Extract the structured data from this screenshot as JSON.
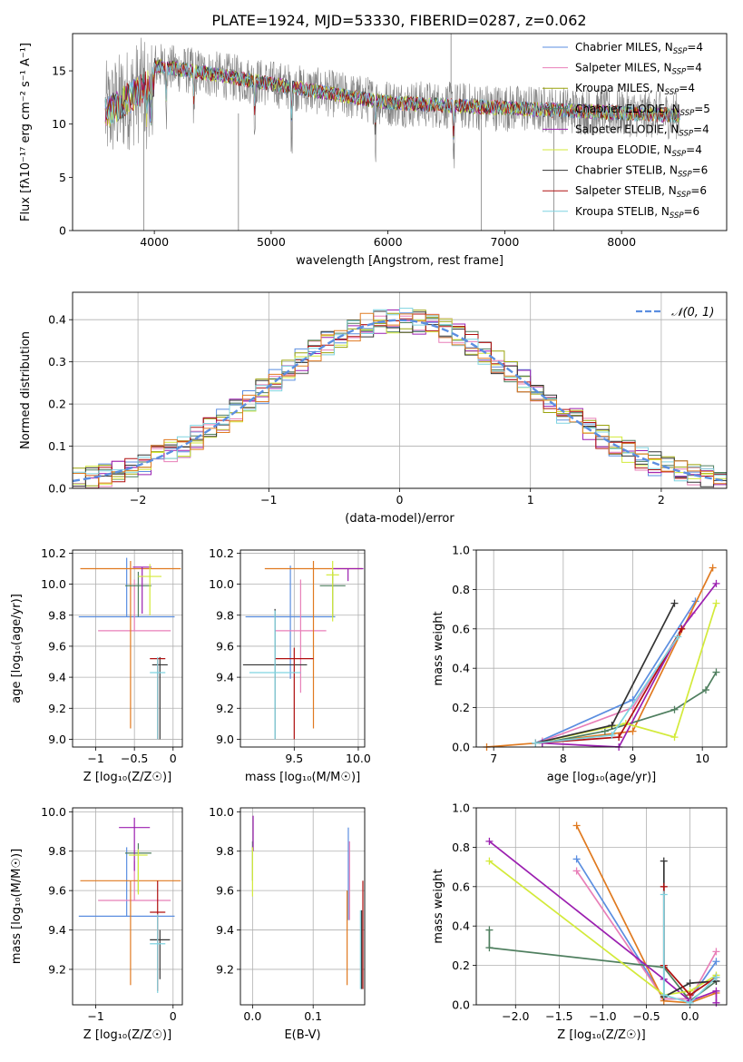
{
  "figure": {
    "title": "PLATE=1924, MJD=53330, FIBERID=0287, z=0.062"
  },
  "chart_data": [
    {
      "id": "spectrum",
      "type": "line",
      "title": "PLATE=1924, MJD=53330, FIBERID=0287, z=0.062",
      "xlabel": "wavelength [Angstrom, rest frame]",
      "ylabel": "Flux [fλ10⁻¹⁷ erg cm⁻² s⁻¹ A⁻¹]",
      "xlim": [
        3300,
        8900
      ],
      "ylim": [
        0,
        18.5
      ],
      "xticks": [
        4000,
        5000,
        6000,
        7000,
        8000
      ],
      "yticks": [
        0,
        5,
        10,
        15
      ],
      "grid": false,
      "legend_position": "top-right",
      "data_color": "#808080",
      "data_range": [
        3580,
        8500
      ],
      "models": [
        {
          "name": "Chabrier MILES, N",
          "sub": "SSP",
          "n": "=4",
          "color": "#5b8ee0"
        },
        {
          "name": "Salpeter MILES, N",
          "sub": "SSP",
          "n": "=4",
          "color": "#e87fb8"
        },
        {
          "name": "Kroupa MILES, N",
          "sub": "SSP",
          "n": "=4",
          "color": "#9aa30c"
        },
        {
          "name": "Chabrier ELODIE, N",
          "sub": "SSP",
          "n": "=5",
          "color": "#4f7f5f"
        },
        {
          "name": "Salpeter ELODIE, N",
          "sub": "SSP",
          "n": "=4",
          "color": "#9b1fb0"
        },
        {
          "name": "Kroupa ELODIE, N",
          "sub": "SSP",
          "n": "=4",
          "color": "#d3ea3a"
        },
        {
          "name": "Chabrier STELIB, N",
          "sub": "SSP",
          "n": "=6",
          "color": "#333333"
        },
        {
          "name": "Salpeter STELIB, N",
          "sub": "SSP",
          "n": "=6",
          "color": "#b01010"
        },
        {
          "name": "Kroupa STELIB, N",
          "sub": "SSP",
          "n": "=6",
          "color": "#7fd3e0"
        }
      ]
    },
    {
      "id": "residuals",
      "type": "line",
      "xlabel": "(data-model)/error",
      "ylabel": "Normed distribution",
      "xlim": [
        -2.5,
        2.5
      ],
      "ylim": [
        0,
        0.465
      ],
      "xticks": [
        -2,
        -1,
        0,
        1,
        2
      ],
      "yticks": [
        0.0,
        0.1,
        0.2,
        0.3,
        0.4
      ],
      "grid": true,
      "legend_position": "top-right",
      "legend_label": "𝒩(0, 1)",
      "bin_width": 0.1,
      "gaussian_color": "#5b8ee0"
    },
    {
      "id": "age-vs-z",
      "type": "scatter",
      "xlabel": "Z [log₁₀(Z/Z☉)]",
      "ylabel": "age [log₁₀(age/yr)]",
      "xlim": [
        -1.3,
        0.12
      ],
      "ylim": [
        8.95,
        10.22
      ],
      "xticks": [
        -1,
        -0.5,
        0
      ],
      "xticklabels": [
        "−1",
        "−0.5",
        "0"
      ],
      "yticks": [
        9.0,
        9.2,
        9.4,
        9.6,
        9.8,
        10.0,
        10.2
      ],
      "grid": true,
      "points": [
        {
          "color": "#5b8ee0",
          "x": -0.6,
          "xerr": 0.62,
          "y": 9.79,
          "yerr": [
            0.0,
            0.38
          ]
        },
        {
          "color": "#e87fb8",
          "x": -0.5,
          "xerr": 0.47,
          "y": 9.7,
          "yerr": [
            0.0,
            0.33
          ]
        },
        {
          "color": "#e07a20",
          "x": -0.55,
          "xerr": 0.65,
          "y": 10.1,
          "yerr": [
            1.03,
            0.05
          ]
        },
        {
          "color": "#4f7f5f",
          "x": -0.45,
          "xerr": 0.17,
          "y": 9.99,
          "yerr": [
            0.2,
            0.09
          ]
        },
        {
          "color": "#9b1fb0",
          "x": -0.4,
          "xerr": 0.12,
          "y": 10.11,
          "yerr": [
            0.3,
            0.0
          ]
        },
        {
          "color": "#d3ea3a",
          "x": -0.3,
          "xerr": 0.15,
          "y": 10.05,
          "yerr": [
            0.25,
            0.08
          ]
        },
        {
          "color": "#333333",
          "x": -0.17,
          "xerr": 0.1,
          "y": 9.48,
          "yerr": [
            0.48,
            0.05
          ]
        },
        {
          "color": "#b01010",
          "x": -0.2,
          "xerr": 0.1,
          "y": 9.52,
          "yerr": [
            0.52,
            0.0
          ]
        },
        {
          "color": "#7fd3e0",
          "x": -0.2,
          "xerr": 0.1,
          "y": 9.43,
          "yerr": [
            0.43,
            0.1
          ]
        }
      ]
    },
    {
      "id": "age-vs-mass",
      "type": "scatter",
      "xlabel": "mass [log₁₀(M/M☉)]",
      "ylabel": "",
      "xlim": [
        9.08,
        10.05
      ],
      "ylim": [
        8.95,
        10.22
      ],
      "xticks": [
        9.5,
        10.0
      ],
      "xticklabels": [
        "9.5",
        "10.0"
      ],
      "yticks": [
        9.0,
        9.2,
        9.4,
        9.6,
        9.8,
        10.0,
        10.2
      ],
      "grid": true,
      "points": [
        {
          "color": "#5b8ee0",
          "x": 9.47,
          "xerr": 0.35,
          "y": 9.79,
          "yerr": [
            0.4,
            0.33
          ]
        },
        {
          "color": "#e87fb8",
          "x": 9.55,
          "xerr": 0.2,
          "y": 9.7,
          "yerr": [
            0.4,
            0.33
          ]
        },
        {
          "color": "#e07a20",
          "x": 9.65,
          "xerr": 0.38,
          "y": 10.1,
          "yerr": [
            1.03,
            0.05
          ]
        },
        {
          "color": "#4f7f5f",
          "x": 9.8,
          "xerr": 0.1,
          "y": 9.99,
          "yerr": [
            0.2,
            0.09
          ]
        },
        {
          "color": "#9b1fb0",
          "x": 9.92,
          "xerr": 0.12,
          "y": 10.1,
          "yerr": [
            0.08,
            0.0
          ]
        },
        {
          "color": "#d3ea3a",
          "x": 9.8,
          "xerr": 0.05,
          "y": 10.06,
          "yerr": [
            0.3,
            0.09
          ]
        },
        {
          "color": "#333333",
          "x": 9.35,
          "xerr": 0.25,
          "y": 9.48,
          "yerr": [
            0.48,
            0.36
          ]
        },
        {
          "color": "#b01010",
          "x": 9.5,
          "xerr": 0.15,
          "y": 9.52,
          "yerr": [
            0.52,
            0.07
          ]
        },
        {
          "color": "#7fd3e0",
          "x": 9.35,
          "xerr": 0.2,
          "y": 9.43,
          "yerr": [
            0.43,
            0.4
          ]
        }
      ]
    },
    {
      "id": "weight-vs-age",
      "type": "line",
      "xlabel": "age [log₁₀(age/yr)]",
      "ylabel": "mass weight",
      "xlim": [
        6.75,
        10.35
      ],
      "ylim": [
        0,
        1.0
      ],
      "xticks": [
        7,
        8,
        9,
        10
      ],
      "yticks": [
        0.0,
        0.2,
        0.4,
        0.6,
        0.8,
        1.0
      ],
      "grid": true,
      "series": [
        {
          "color": "#5b8ee0",
          "x": [
            7.6,
            9.0,
            9.9
          ],
          "y": [
            0.02,
            0.24,
            0.74
          ]
        },
        {
          "color": "#e87fb8",
          "x": [
            7.7,
            9.0,
            9.85
          ],
          "y": [
            0.03,
            0.2,
            0.68
          ]
        },
        {
          "color": "#e07a20",
          "x": [
            6.9,
            7.6,
            9.0,
            10.15
          ],
          "y": [
            0.0,
            0.02,
            0.08,
            0.91
          ]
        },
        {
          "color": "#4f7f5f",
          "x": [
            7.7,
            8.6,
            9.6,
            10.05,
            10.2
          ],
          "y": [
            0.02,
            0.08,
            0.19,
            0.29,
            0.38
          ]
        },
        {
          "color": "#9b1fb0",
          "x": [
            7.7,
            8.8,
            9.7,
            10.2
          ],
          "y": [
            0.02,
            0.0,
            0.6,
            0.83
          ]
        },
        {
          "color": "#d3ea3a",
          "x": [
            7.6,
            8.9,
            9.6,
            10.2
          ],
          "y": [
            0.02,
            0.12,
            0.05,
            0.73
          ]
        },
        {
          "color": "#333333",
          "x": [
            7.6,
            8.7,
            9.6
          ],
          "y": [
            0.02,
            0.11,
            0.73
          ]
        },
        {
          "color": "#b01010",
          "x": [
            7.6,
            8.8,
            9.7
          ],
          "y": [
            0.02,
            0.05,
            0.6
          ]
        },
        {
          "color": "#7fd3e0",
          "x": [
            7.6,
            8.7,
            9.65
          ],
          "y": [
            0.02,
            0.06,
            0.56
          ]
        }
      ]
    },
    {
      "id": "mass-vs-z",
      "type": "scatter",
      "xlabel": "Z [log₁₀(Z/Z☉)]",
      "ylabel": "mass [log₁₀(M/M☉)]",
      "xlim": [
        -1.3,
        0.12
      ],
      "ylim": [
        9.02,
        10.02
      ],
      "xticks": [
        -1,
        0
      ],
      "xticklabels": [
        "−1",
        "0"
      ],
      "yticks": [
        9.2,
        9.4,
        9.6,
        9.8,
        10.0
      ],
      "grid": true,
      "points": [
        {
          "color": "#5b8ee0",
          "x": -0.6,
          "xerr": 0.62,
          "y": 9.47,
          "yerr": [
            0.0,
            0.35
          ]
        },
        {
          "color": "#e87fb8",
          "x": -0.5,
          "xerr": 0.47,
          "y": 9.55,
          "yerr": [
            0.0,
            0.2
          ]
        },
        {
          "color": "#e07a20",
          "x": -0.55,
          "xerr": 0.65,
          "y": 9.65,
          "yerr": [
            0.53,
            0.0
          ]
        },
        {
          "color": "#4f7f5f",
          "x": -0.45,
          "xerr": 0.17,
          "y": 9.79,
          "yerr": [
            0.2,
            0.05
          ]
        },
        {
          "color": "#9b1fb0",
          "x": -0.5,
          "xerr": 0.2,
          "y": 9.92,
          "yerr": [
            0.22,
            0.05
          ]
        },
        {
          "color": "#d3ea3a",
          "x": -0.45,
          "xerr": 0.12,
          "y": 9.78,
          "yerr": [
            0.2,
            0.03
          ]
        },
        {
          "color": "#333333",
          "x": -0.17,
          "xerr": 0.13,
          "y": 9.35,
          "yerr": [
            0.2,
            0.05
          ]
        },
        {
          "color": "#b01010",
          "x": -0.2,
          "xerr": 0.1,
          "y": 9.49,
          "yerr": [
            0.4,
            0.16
          ]
        },
        {
          "color": "#7fd3e0",
          "x": -0.2,
          "xerr": 0.1,
          "y": 9.33,
          "yerr": [
            0.25,
            0.15
          ]
        }
      ]
    },
    {
      "id": "mass-vs-ebv",
      "type": "scatter",
      "xlabel": "E(B-V)",
      "ylabel": "",
      "xlim": [
        -0.02,
        0.185
      ],
      "ylim": [
        9.02,
        10.02
      ],
      "xticks": [
        0.0,
        0.1
      ],
      "xticklabels": [
        "0.0",
        "0.1"
      ],
      "yticks": [
        9.2,
        9.4,
        9.6,
        9.8,
        10.0
      ],
      "grid": true,
      "points": [
        {
          "color": "#5b8ee0",
          "x": 0.158,
          "xerr": 0.0,
          "y": 9.7,
          "yerr": [
            0.25,
            0.22
          ]
        },
        {
          "color": "#e87fb8",
          "x": 0.16,
          "xerr": 0.0,
          "y": 9.6,
          "yerr": [
            0.15,
            0.25
          ]
        },
        {
          "color": "#e07a20",
          "x": 0.156,
          "xerr": 0.0,
          "y": 9.6,
          "yerr": [
            0.48,
            0.0
          ]
        },
        {
          "color": "#4f7f5f",
          "x": 0.0,
          "xerr": 0.0,
          "y": 9.8,
          "yerr": [
            0.15,
            0.05
          ]
        },
        {
          "color": "#9b1fb0",
          "x": 0.001,
          "xerr": 0.0,
          "y": 9.9,
          "yerr": [
            0.1,
            0.08
          ]
        },
        {
          "color": "#d3ea3a",
          "x": 0.0,
          "xerr": 0.0,
          "y": 9.7,
          "yerr": [
            0.13,
            0.12
          ]
        },
        {
          "color": "#333333",
          "x": 0.18,
          "xerr": 0.0,
          "y": 9.3,
          "yerr": [
            0.2,
            0.2
          ]
        },
        {
          "color": "#b01010",
          "x": 0.182,
          "xerr": 0.0,
          "y": 9.4,
          "yerr": [
            0.3,
            0.25
          ]
        },
        {
          "color": "#7fd3e0",
          "x": 0.178,
          "xerr": 0.0,
          "y": 9.3,
          "yerr": [
            0.2,
            0.2
          ]
        }
      ]
    },
    {
      "id": "weight-vs-z",
      "type": "line",
      "xlabel": "Z [log₁₀(Z/Z☉)]",
      "ylabel": "mass weight",
      "xlim": [
        -2.45,
        0.42
      ],
      "ylim": [
        0,
        1.0
      ],
      "xticks": [
        -2.0,
        -1.5,
        -1.0,
        -0.5,
        0.0
      ],
      "xticklabels": [
        "−2.0",
        "−1.5",
        "−1.0",
        "−0.5",
        "0.0"
      ],
      "yticks": [
        0.0,
        0.2,
        0.4,
        0.6,
        0.8,
        1.0
      ],
      "grid": true,
      "series": [
        {
          "color": "#5b8ee0",
          "x": [
            -1.3,
            -0.3,
            0.0,
            0.3
          ],
          "y": [
            0.74,
            0.03,
            0.03,
            0.22
          ]
        },
        {
          "color": "#e87fb8",
          "x": [
            -1.3,
            -0.3,
            0.0,
            0.3
          ],
          "y": [
            0.68,
            0.03,
            0.03,
            0.27
          ]
        },
        {
          "color": "#e07a20",
          "x": [
            -1.3,
            -0.3,
            0.0,
            0.3
          ],
          "y": [
            0.91,
            0.02,
            0.01,
            0.06
          ]
        },
        {
          "color": "#4f7f5f",
          "x": [
            -2.3,
            -2.3,
            -0.3,
            0.0,
            0.3
          ],
          "y": [
            0.38,
            0.29,
            0.19,
            0.02,
            0.12
          ]
        },
        {
          "color": "#9b1fb0",
          "x": [
            -2.3,
            -0.3,
            0.0,
            0.3,
            0.3
          ],
          "y": [
            0.83,
            0.13,
            0.02,
            0.07,
            0.01
          ]
        },
        {
          "color": "#d3ea3a",
          "x": [
            -2.3,
            -0.3,
            0.0,
            0.3
          ],
          "y": [
            0.73,
            0.05,
            0.07,
            0.15
          ]
        },
        {
          "color": "#333333",
          "x": [
            -0.3,
            -0.3,
            0.0,
            0.3
          ],
          "y": [
            0.73,
            0.04,
            0.11,
            0.12
          ]
        },
        {
          "color": "#b01010",
          "x": [
            -0.3,
            -0.3,
            0.0,
            0.3
          ],
          "y": [
            0.6,
            0.2,
            0.05,
            0.14
          ]
        },
        {
          "color": "#7fd3e0",
          "x": [
            -0.3,
            -0.3,
            0.0,
            0.3
          ],
          "y": [
            0.56,
            0.05,
            0.01,
            0.14
          ]
        }
      ]
    }
  ]
}
